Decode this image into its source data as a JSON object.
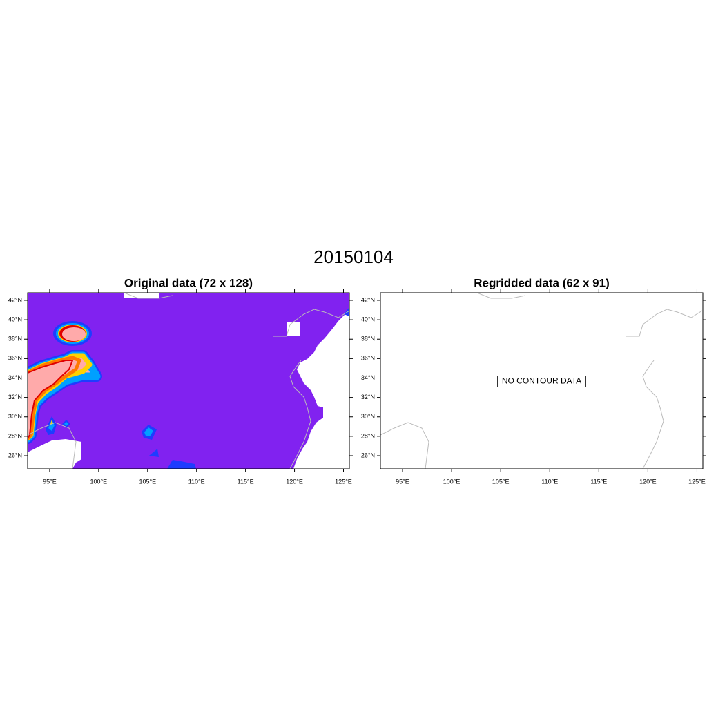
{
  "title": "20150104",
  "panels": [
    {
      "title": "Original data (72 x 128)",
      "xlim": [
        92.75,
        125.6
      ],
      "ylim": [
        24.65,
        42.78
      ],
      "xticks": [
        {
          "value": 95,
          "label": "95°E"
        },
        {
          "value": 100,
          "label": "100°E"
        },
        {
          "value": 105,
          "label": "105°E"
        },
        {
          "value": 110,
          "label": "110°E"
        },
        {
          "value": 115,
          "label": "115°E"
        },
        {
          "value": 120,
          "label": "120°E"
        },
        {
          "value": 125,
          "label": "125°E"
        }
      ],
      "yticks": [
        {
          "value": 26,
          "label": "26°N"
        },
        {
          "value": 28,
          "label": "28°N"
        },
        {
          "value": 30,
          "label": "30°N"
        },
        {
          "value": 32,
          "label": "32°N"
        },
        {
          "value": 34,
          "label": "34°N"
        },
        {
          "value": 36,
          "label": "36°N"
        },
        {
          "value": 38,
          "label": "38°N"
        },
        {
          "value": 40,
          "label": "40°N"
        },
        {
          "value": 42,
          "label": "42°N"
        }
      ]
    },
    {
      "title": "Regridded data (62 x 91)",
      "annotation": "NO CONTOUR DATA",
      "xlim": [
        92.75,
        125.6
      ],
      "ylim": [
        24.65,
        42.78
      ],
      "xticks": [
        {
          "value": 95,
          "label": "95°E"
        },
        {
          "value": 100,
          "label": "100°E"
        },
        {
          "value": 105,
          "label": "105°E"
        },
        {
          "value": 110,
          "label": "110°E"
        },
        {
          "value": 115,
          "label": "115°E"
        },
        {
          "value": 120,
          "label": "120°E"
        },
        {
          "value": 125,
          "label": "125°E"
        }
      ],
      "yticks": [
        {
          "value": 26,
          "label": "26°N"
        },
        {
          "value": 28,
          "label": "28°N"
        },
        {
          "value": 30,
          "label": "30°N"
        },
        {
          "value": 32,
          "label": "32°N"
        },
        {
          "value": 34,
          "label": "34°N"
        },
        {
          "value": 36,
          "label": "36°N"
        },
        {
          "value": 38,
          "label": "38°N"
        },
        {
          "value": 40,
          "label": "40°N"
        },
        {
          "value": 42,
          "label": "42°N"
        }
      ]
    }
  ]
}
